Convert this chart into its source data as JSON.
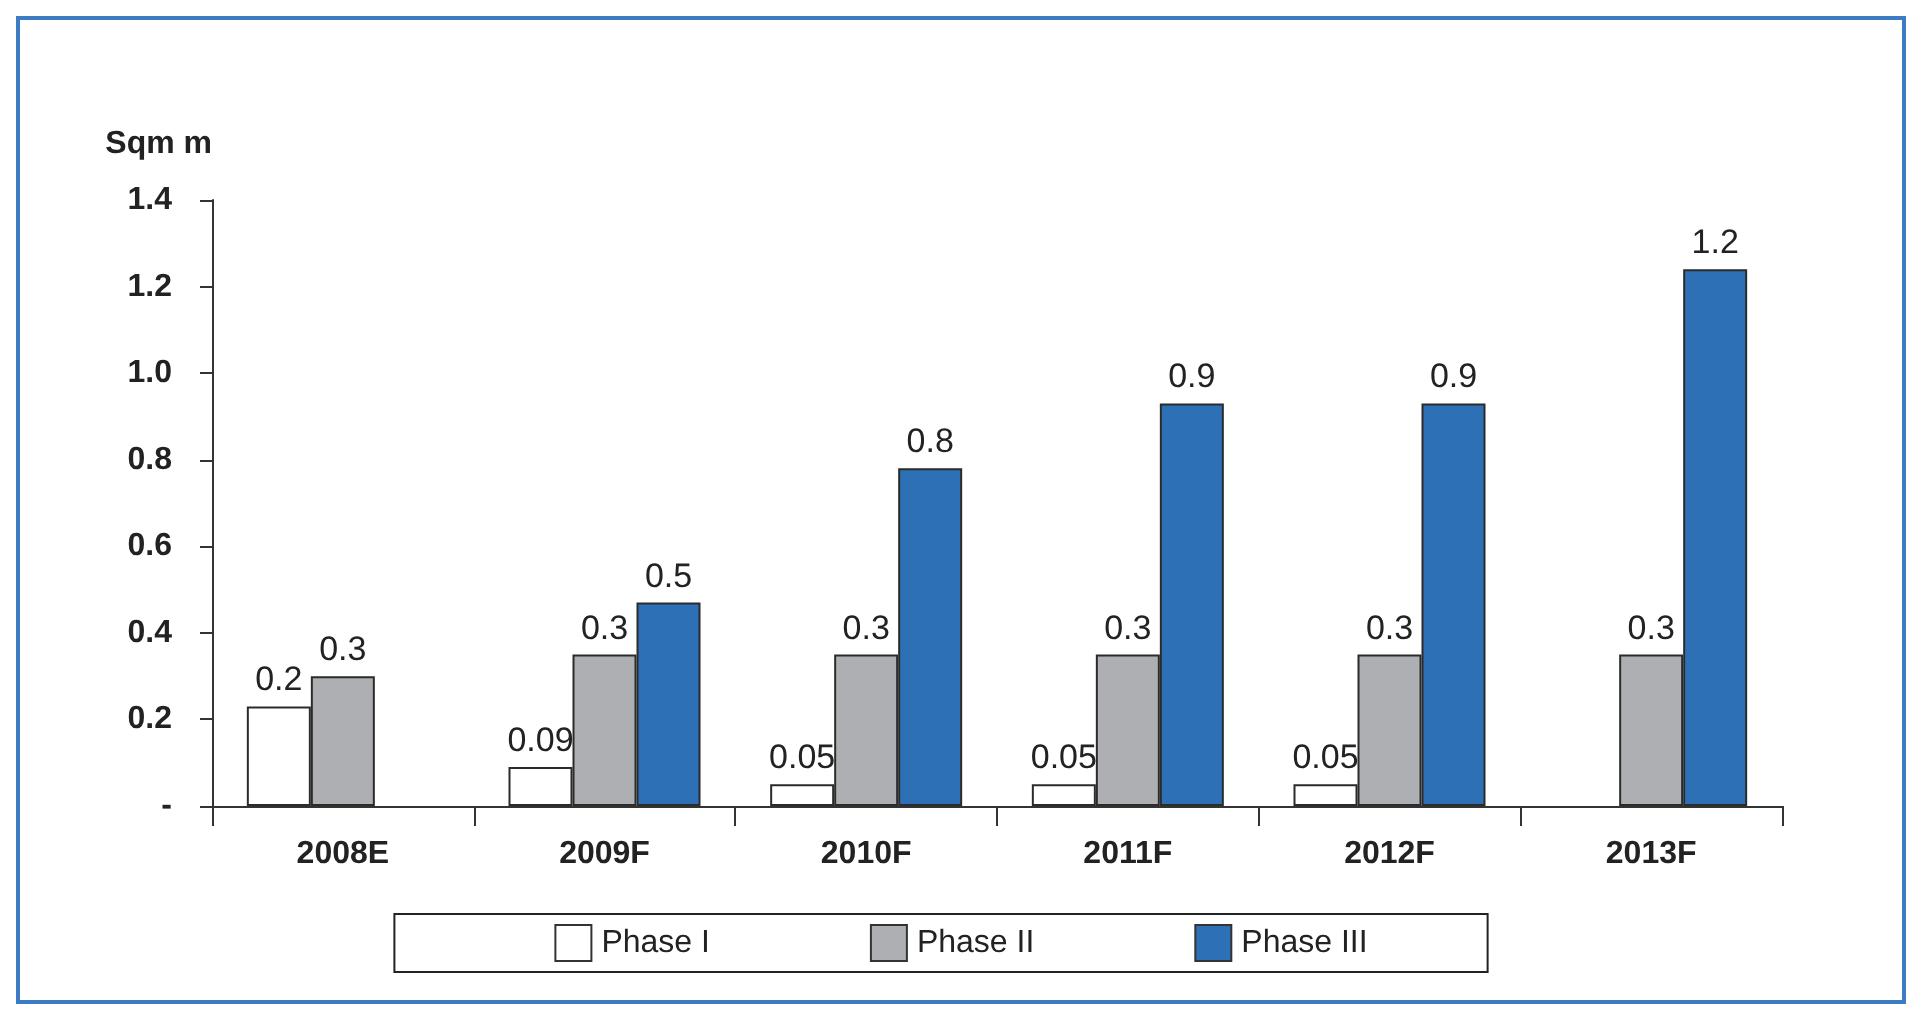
{
  "chart_data": {
    "type": "bar",
    "ylabel": "Sqm m",
    "categories": [
      "2008E",
      "2009F",
      "2010F",
      "2011F",
      "2012F",
      "2013F"
    ],
    "series": [
      {
        "name": "Phase I",
        "color": "#ffffff",
        "values": [
          0.23,
          0.09,
          0.05,
          0.05,
          0.05,
          null
        ],
        "value_labels": [
          "0.2",
          "0.09",
          "0.05",
          "0.05",
          "0.05",
          null
        ]
      },
      {
        "name": "Phase II",
        "color": "#aeafb2",
        "values": [
          0.3,
          0.35,
          0.35,
          0.35,
          0.35,
          0.35
        ],
        "value_labels": [
          "0.3",
          "0.3",
          "0.3",
          "0.3",
          "0.3",
          "0.3"
        ]
      },
      {
        "name": "Phase III",
        "color": "#2e70b6",
        "values": [
          null,
          0.47,
          0.78,
          0.93,
          0.93,
          1.24
        ],
        "value_labels": [
          null,
          "0.5",
          "0.8",
          "0.9",
          "0.9",
          "1.2"
        ]
      }
    ],
    "ylim": [
      0,
      1.4
    ],
    "yticks": [
      {
        "value": 0,
        "label": "-"
      },
      0.2,
      0.4,
      0.6,
      0.8,
      {
        "value": 1,
        "label": "1.0"
      },
      1.2,
      1.4
    ],
    "grid": false,
    "legend": "bottom"
  }
}
